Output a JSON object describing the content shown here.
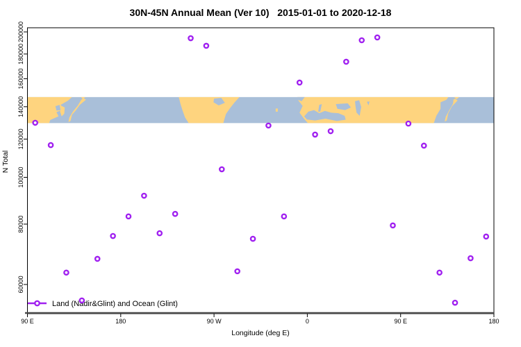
{
  "chart_data": {
    "type": "scatter",
    "title": "30N-45N Annual Mean (Ver 10)   2015-01-01 to 2020-12-18",
    "xlabel": "Longitude (deg E)",
    "ylabel": "N Total",
    "legend": {
      "label": "Land (Nadir&Glint) and Ocean (Glint)",
      "color": "#a020f0",
      "marker": "open-circle-on-line"
    },
    "point_color": "#a020f0",
    "axis_line_color": "#4a4a4a",
    "x_axis": {
      "range_deg": [
        90,
        540
      ],
      "ticks_deg": [
        90,
        180,
        270,
        360,
        450,
        540
      ],
      "tick_labels": [
        "90 E",
        "180",
        "90 W",
        "0",
        "90 E",
        "180"
      ]
    },
    "y_axis": {
      "scale": "log",
      "range": [
        52200,
        204000
      ],
      "ticks": [
        60000,
        80000,
        100000,
        120000,
        140000,
        160000,
        180000,
        200000
      ],
      "tick_labels": [
        "60000",
        "80000",
        "100000",
        "120000",
        "140000",
        "160000",
        "180000",
        "200000"
      ]
    },
    "series": [
      {
        "name": "Land (Nadir&Glint) and Ocean (Glint)",
        "marker": "open-circle",
        "color": "#a020f0",
        "points": [
          [
            97.5,
            129700
          ],
          [
            112.5,
            116600
          ],
          [
            127.5,
            63500
          ],
          [
            142.5,
            55600
          ],
          [
            157.5,
            67800
          ],
          [
            172.5,
            75600
          ],
          [
            187.5,
            83000
          ],
          [
            202.5,
            91600
          ],
          [
            217.5,
            76600
          ],
          [
            232.5,
            84000
          ],
          [
            247.5,
            194100
          ],
          [
            262.5,
            187200
          ],
          [
            277.5,
            103900
          ],
          [
            292.5,
            63900
          ],
          [
            307.5,
            74600
          ],
          [
            322.5,
            128000
          ],
          [
            337.5,
            83000
          ],
          [
            352.5,
            157100
          ],
          [
            367.5,
            122600
          ],
          [
            382.5,
            124600
          ],
          [
            397.5,
            173500
          ],
          [
            412.5,
            192200
          ],
          [
            427.5,
            194800
          ],
          [
            442.5,
            79500
          ],
          [
            457.5,
            129200
          ],
          [
            472.5,
            116300
          ],
          [
            487.5,
            63500
          ],
          [
            502.5,
            55000
          ],
          [
            517.5,
            68000
          ],
          [
            532.5,
            75400
          ]
        ]
      }
    ],
    "map_band": {
      "description": "world map strip for latitude band 30N-45N drawn across plot",
      "top_n": 146600,
      "bottom_n": 129500,
      "land_color": "#fed47f",
      "ocean_color": "#a9bfd9",
      "land_shapes": [
        {
          "name": "asia-west",
          "pts": [
            [
              90,
              0
            ],
            [
              133,
              0
            ],
            [
              129,
              0.14
            ],
            [
              122,
              0.3
            ],
            [
              125,
              0.46
            ],
            [
              118,
              0.58
            ],
            [
              120,
              0.74
            ],
            [
              112,
              0.88
            ],
            [
              111,
              1
            ],
            [
              90,
              1
            ]
          ]
        },
        {
          "name": "korea-west",
          "pts": [
            [
              122,
              0.32
            ],
            [
              126,
              0.4
            ],
            [
              125.5,
              0.64
            ],
            [
              123,
              0.74
            ],
            [
              121.5,
              0.56
            ]
          ]
        },
        {
          "name": "japan-west",
          "pts": [
            [
              144,
              0.04
            ],
            [
              146.5,
              0.1
            ],
            [
              140.5,
              0.3
            ],
            [
              136.5,
              0.52
            ],
            [
              133,
              0.68
            ],
            [
              131.5,
              0.92
            ],
            [
              129.5,
              0.96
            ],
            [
              130.5,
              0.78
            ],
            [
              134,
              0.55
            ],
            [
              138.5,
              0.33
            ],
            [
              142,
              0.1
            ]
          ]
        },
        {
          "name": "sakhalin-west",
          "pts": [
            [
              141.5,
              0
            ],
            [
              146,
              0
            ],
            [
              143.5,
              0.07
            ]
          ]
        },
        {
          "name": "north-america",
          "pts": [
            [
              236,
              0
            ],
            [
              294.5,
              0
            ],
            [
              289.5,
              0.22
            ],
            [
              285,
              0.45
            ],
            [
              281.5,
              0.65
            ],
            [
              280,
              0.85
            ],
            [
              279,
              1
            ],
            [
              245.5,
              1
            ],
            [
              242,
              0.78
            ],
            [
              239.5,
              0.5
            ],
            [
              237.5,
              0.24
            ]
          ]
        },
        {
          "name": "azores",
          "pts": [
            [
              329.5,
              0.44
            ],
            [
              331.5,
              0.44
            ],
            [
              331.5,
              0.56
            ],
            [
              329.5,
              0.56
            ]
          ]
        },
        {
          "name": "eurasia",
          "pts": [
            [
              350.5,
              0
            ],
            [
              496,
              0
            ],
            [
              492.5,
              0.2
            ],
            [
              488.5,
              0.45
            ],
            [
              484.5,
              0.72
            ],
            [
              482,
              1
            ],
            [
              360.5,
              1
            ],
            [
              357,
              0.84
            ],
            [
              352.5,
              0.6
            ],
            [
              355.5,
              0.34
            ],
            [
              351.5,
              0.14
            ]
          ]
        },
        {
          "name": "japan-east",
          "pts": [
            [
              502.5,
              0.06
            ],
            [
              505,
              0.13
            ],
            [
              499.5,
              0.36
            ],
            [
              496,
              0.62
            ],
            [
              494.5,
              0.9
            ],
            [
              492.5,
              0.94
            ],
            [
              493.5,
              0.76
            ],
            [
              497,
              0.5
            ],
            [
              500.5,
              0.26
            ],
            [
              501,
              0.1
            ]
          ]
        },
        {
          "name": "hokkaido-east",
          "pts": [
            [
              501.5,
              0
            ],
            [
              506.5,
              0
            ],
            [
              504,
              0.08
            ]
          ]
        }
      ],
      "water_shapes": [
        {
          "name": "bohai-sea-west",
          "pts": [
            [
              117,
              0.35
            ],
            [
              121,
              0.3
            ],
            [
              122,
              0.5
            ],
            [
              118,
              0.52
            ]
          ]
        },
        {
          "name": "great-lakes",
          "pts": [
            [
              270,
              0.06
            ],
            [
              277,
              0.03
            ],
            [
              280.5,
              0.22
            ],
            [
              274.5,
              0.32
            ],
            [
              269.5,
              0.2
            ]
          ]
        },
        {
          "name": "bay-of-biscay",
          "pts": [
            [
              350.5,
              0
            ],
            [
              357.5,
              0
            ],
            [
              354.5,
              0.16
            ],
            [
              350.8,
              0.1
            ]
          ]
        },
        {
          "name": "mediterranean-sea",
          "pts": [
            [
              357,
              0.74
            ],
            [
              361,
              0.56
            ],
            [
              366.5,
              0.5
            ],
            [
              371.5,
              0.62
            ],
            [
              377,
              0.53
            ],
            [
              383,
              0.6
            ],
            [
              390,
              0.62
            ],
            [
              396,
              0.72
            ],
            [
              397,
              0.87
            ],
            [
              388.5,
              0.92
            ],
            [
              377.5,
              0.83
            ],
            [
              367.5,
              0.9
            ],
            [
              359.5,
              0.86
            ]
          ]
        },
        {
          "name": "adriatic-sea",
          "pts": [
            [
              371.5,
              0.3
            ],
            [
              374,
              0.27
            ],
            [
              372.5,
              0.56
            ],
            [
              370.5,
              0.56
            ]
          ]
        },
        {
          "name": "black-sea",
          "pts": [
            [
              387.5,
              0.27
            ],
            [
              399,
              0.24
            ],
            [
              402,
              0.4
            ],
            [
              396.5,
              0.5
            ],
            [
              389,
              0.45
            ]
          ]
        },
        {
          "name": "caspian-sea",
          "pts": [
            [
              406,
              0.16
            ],
            [
              410,
              0.12
            ],
            [
              412,
              0.38
            ],
            [
              410.5,
              0.72
            ],
            [
              407.5,
              0.6
            ],
            [
              406.5,
              0.36
            ]
          ]
        },
        {
          "name": "aral-sea",
          "pts": [
            [
              417.5,
              0.18
            ],
            [
              420,
              0.17
            ],
            [
              419,
              0.32
            ]
          ]
        },
        {
          "name": "sea-of-japan-east",
          "pts": [
            [
              488.5,
              0.2
            ],
            [
              494.5,
              0.1
            ],
            [
              496.5,
              0.36
            ],
            [
              492.5,
              0.62
            ],
            [
              488.5,
              0.48
            ]
          ]
        }
      ]
    }
  }
}
